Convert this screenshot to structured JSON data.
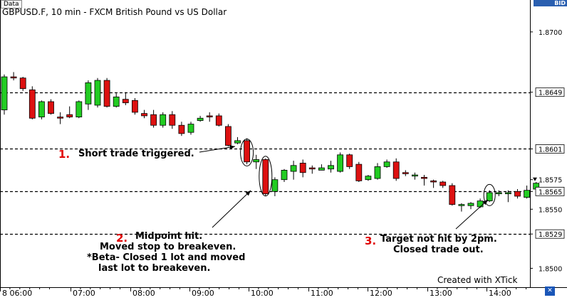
{
  "app": {
    "data_tab": "Data",
    "title": "GBPUSD.F, 10 min - FXCM British Pound vs US Dollar",
    "price_side": "BID",
    "watermark": "Created with XTick",
    "corner_icon": "x-tick-logo-icon"
  },
  "chart_data": {
    "type": "candlestick",
    "title": "GBPUSD.F, 10 min - FXCM British Pound vs US Dollar",
    "price_axis": {
      "tick_labels": [
        "1.8700",
        "1.8649",
        "1.8601",
        "1.8575",
        "1.8565",
        "1.8550",
        "1.8529",
        "1.8500"
      ],
      "range": [
        1.8484,
        1.8727
      ]
    },
    "time_axis": {
      "tick_labels": [
        "8 06:00",
        "07:00",
        "08:00",
        "09:00",
        "10:00",
        "11:00",
        "12:00",
        "13:00",
        "14:00"
      ]
    },
    "levels": [
      1.8649,
      1.8601,
      1.8565,
      1.8529
    ],
    "current_price": 1.8575,
    "colors": {
      "up": "#22cc22",
      "down": "#dd1111",
      "wick": "#000000",
      "level_line": "#000000"
    },
    "candles": [
      {
        "o": 1.8634,
        "h": 1.8664,
        "c": 1.8662,
        "l": 1.863
      },
      {
        "o": 1.8662,
        "h": 1.8666,
        "c": 1.8661,
        "l": 1.8659
      },
      {
        "o": 1.8661,
        "h": 1.8662,
        "c": 1.8652,
        "l": 1.865
      },
      {
        "o": 1.8651,
        "h": 1.8654,
        "c": 1.8627,
        "l": 1.8626
      },
      {
        "o": 1.8628,
        "h": 1.8642,
        "c": 1.8641,
        "l": 1.8626
      },
      {
        "o": 1.8641,
        "h": 1.8643,
        "c": 1.8631,
        "l": 1.863
      },
      {
        "o": 1.8628,
        "h": 1.8632,
        "c": 1.8627,
        "l": 1.8622
      },
      {
        "o": 1.863,
        "h": 1.8637,
        "c": 1.8628,
        "l": 1.8627
      },
      {
        "o": 1.8628,
        "h": 1.8642,
        "c": 1.8641,
        "l": 1.8627
      },
      {
        "o": 1.8639,
        "h": 1.8659,
        "c": 1.8657,
        "l": 1.8634
      },
      {
        "o": 1.8638,
        "h": 1.8661,
        "c": 1.8659,
        "l": 1.8636
      },
      {
        "o": 1.8659,
        "h": 1.8661,
        "c": 1.8637,
        "l": 1.8636
      },
      {
        "o": 1.8637,
        "h": 1.8648,
        "c": 1.8645,
        "l": 1.8636
      },
      {
        "o": 1.8643,
        "h": 1.8649,
        "c": 1.864,
        "l": 1.8638
      },
      {
        "o": 1.8642,
        "h": 1.8644,
        "c": 1.8632,
        "l": 1.863
      },
      {
        "o": 1.8631,
        "h": 1.8634,
        "c": 1.8629,
        "l": 1.8627
      },
      {
        "o": 1.863,
        "h": 1.8634,
        "c": 1.8621,
        "l": 1.8619
      },
      {
        "o": 1.8621,
        "h": 1.8632,
        "c": 1.863,
        "l": 1.8619
      },
      {
        "o": 1.863,
        "h": 1.8633,
        "c": 1.8621,
        "l": 1.8618
      },
      {
        "o": 1.8621,
        "h": 1.8624,
        "c": 1.8614,
        "l": 1.8612
      },
      {
        "o": 1.8615,
        "h": 1.8624,
        "c": 1.8622,
        "l": 1.8613
      },
      {
        "o": 1.8625,
        "h": 1.8629,
        "c": 1.8627,
        "l": 1.8624
      },
      {
        "o": 1.8629,
        "h": 1.8632,
        "c": 1.8628,
        "l": 1.8624
      },
      {
        "o": 1.8629,
        "h": 1.8631,
        "c": 1.8621,
        "l": 1.862
      },
      {
        "o": 1.862,
        "h": 1.8622,
        "c": 1.8604,
        "l": 1.8603
      },
      {
        "o": 1.8606,
        "h": 1.8611,
        "c": 1.8608,
        "l": 1.8605
      },
      {
        "o": 1.8608,
        "h": 1.861,
        "c": 1.859,
        "l": 1.8588
      },
      {
        "o": 1.859,
        "h": 1.8596,
        "c": 1.8592,
        "l": 1.8584
      },
      {
        "o": 1.8592,
        "h": 1.8593,
        "c": 1.8563,
        "l": 1.8561
      },
      {
        "o": 1.8565,
        "h": 1.8577,
        "c": 1.8575,
        "l": 1.8561
      },
      {
        "o": 1.8575,
        "h": 1.8584,
        "c": 1.8583,
        "l": 1.8573
      },
      {
        "o": 1.8582,
        "h": 1.8591,
        "c": 1.8587,
        "l": 1.8575
      },
      {
        "o": 1.8589,
        "h": 1.8592,
        "c": 1.8581,
        "l": 1.8577
      },
      {
        "o": 1.8585,
        "h": 1.8587,
        "c": 1.8584,
        "l": 1.858
      },
      {
        "o": 1.8583,
        "h": 1.8588,
        "c": 1.8585,
        "l": 1.8583
      },
      {
        "o": 1.8584,
        "h": 1.8591,
        "c": 1.8587,
        "l": 1.8581
      },
      {
        "o": 1.8582,
        "h": 1.8598,
        "c": 1.8596,
        "l": 1.8581
      },
      {
        "o": 1.8596,
        "h": 1.8597,
        "c": 1.8586,
        "l": 1.8584
      },
      {
        "o": 1.8588,
        "h": 1.859,
        "c": 1.8574,
        "l": 1.8573
      },
      {
        "o": 1.8575,
        "h": 1.8579,
        "c": 1.8578,
        "l": 1.8574
      },
      {
        "o": 1.8576,
        "h": 1.8589,
        "c": 1.8586,
        "l": 1.8575
      },
      {
        "o": 1.8586,
        "h": 1.8592,
        "c": 1.859,
        "l": 1.8585
      },
      {
        "o": 1.859,
        "h": 1.8593,
        "c": 1.8576,
        "l": 1.8574
      },
      {
        "o": 1.8581,
        "h": 1.8583,
        "c": 1.858,
        "l": 1.8578
      },
      {
        "o": 1.8578,
        "h": 1.8581,
        "c": 1.8579,
        "l": 1.8575
      },
      {
        "o": 1.8577,
        "h": 1.8579,
        "c": 1.8576,
        "l": 1.857
      },
      {
        "o": 1.8574,
        "h": 1.8575,
        "c": 1.8573,
        "l": 1.8568
      },
      {
        "o": 1.8573,
        "h": 1.8574,
        "c": 1.857,
        "l": 1.8568
      },
      {
        "o": 1.857,
        "h": 1.8572,
        "c": 1.8554,
        "l": 1.8553
      },
      {
        "o": 1.8553,
        "h": 1.8555,
        "c": 1.8554,
        "l": 1.8548
      },
      {
        "o": 1.8553,
        "h": 1.8556,
        "c": 1.8555,
        "l": 1.855
      },
      {
        "o": 1.8552,
        "h": 1.8559,
        "c": 1.8557,
        "l": 1.8551
      },
      {
        "o": 1.8557,
        "h": 1.8566,
        "c": 1.8564,
        "l": 1.8556
      },
      {
        "o": 1.8563,
        "h": 1.8566,
        "c": 1.8564,
        "l": 1.8561
      },
      {
        "o": 1.8563,
        "h": 1.8566,
        "c": 1.8564,
        "l": 1.8556
      },
      {
        "o": 1.8565,
        "h": 1.8567,
        "c": 1.8561,
        "l": 1.8559
      },
      {
        "o": 1.856,
        "h": 1.857,
        "c": 1.8566,
        "l": 1.8559
      },
      {
        "o": 1.8567,
        "h": 1.8573,
        "c": 1.8572,
        "l": 1.8566
      }
    ],
    "annotations": [
      {
        "number": "1.",
        "lines": [
          "Short trade triggered."
        ]
      },
      {
        "number": "2.",
        "lines": [
          "Midpoint hit.",
          "Moved stop to breakeven.",
          "*Beta- Closed 1 lot and moved",
          "last lot to breakeven."
        ]
      },
      {
        "number": "3.",
        "lines": [
          "Target not hit by 2pm.",
          "Closed trade out."
        ]
      }
    ]
  }
}
